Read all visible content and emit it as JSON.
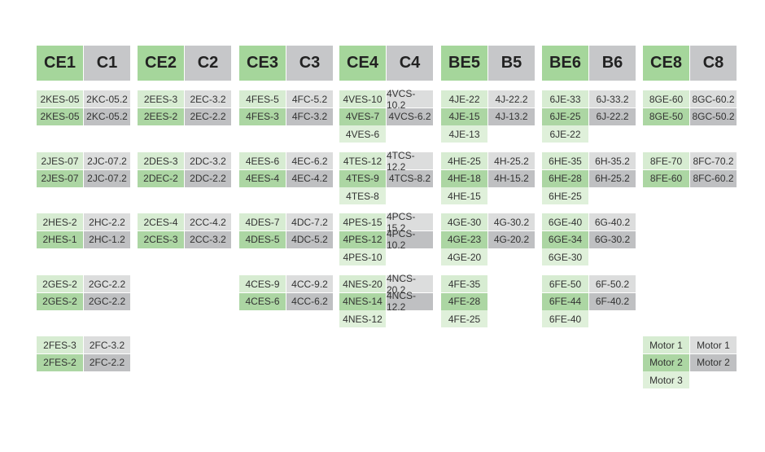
{
  "groups": [
    {
      "header": [
        "CE1",
        "C1"
      ],
      "bands": [
        [
          [
            "2KES-05",
            "2KC-05.2"
          ],
          [
            "2KES-05",
            "2KC-05.2"
          ]
        ],
        [
          [
            "2JES-07",
            "2JC-07.2"
          ],
          [
            "2JES-07",
            "2JC-07.2"
          ]
        ],
        [
          [
            "2HES-2",
            "2HC-2.2"
          ],
          [
            "2HES-1",
            "2HC-1.2"
          ]
        ],
        [
          [
            "2GES-2",
            "2GC-2.2"
          ],
          [
            "2GES-2",
            "2GC-2.2"
          ]
        ],
        [
          [
            "2FES-3",
            "2FC-3.2"
          ],
          [
            "2FES-2",
            "2FC-2.2"
          ]
        ]
      ]
    },
    {
      "header": [
        "CE2",
        "C2"
      ],
      "bands": [
        [
          [
            "2EES-3",
            "2EC-3.2"
          ],
          [
            "2EES-2",
            "2EC-2.2"
          ]
        ],
        [
          [
            "2DES-3",
            "2DC-3.2"
          ],
          [
            "2DEC-2",
            "2DC-2.2"
          ]
        ],
        [
          [
            "2CES-4",
            "2CC-4.2"
          ],
          [
            "2CES-3",
            "2CC-3.2"
          ]
        ],
        null,
        null
      ]
    },
    {
      "header": [
        "CE3",
        "C3"
      ],
      "bands": [
        [
          [
            "4FES-5",
            "4FC-5.2"
          ],
          [
            "4FES-3",
            "4FC-3.2"
          ]
        ],
        [
          [
            "4EES-6",
            "4EC-6.2"
          ],
          [
            "4EES-4",
            "4EC-4.2"
          ]
        ],
        [
          [
            "4DES-7",
            "4DC-7.2"
          ],
          [
            "4DES-5",
            "4DC-5.2"
          ]
        ],
        [
          [
            "4CES-9",
            "4CC-9.2"
          ],
          [
            "4CES-6",
            "4CC-6.2"
          ]
        ],
        null
      ]
    },
    {
      "header": [
        "CE4",
        "C4"
      ],
      "bands": [
        [
          [
            "4VES-10",
            "4VCS-10.2"
          ],
          [
            "4VES-7",
            "4VCS-6.2"
          ],
          [
            "4VES-6"
          ]
        ],
        [
          [
            "4TES-12",
            "4TCS-12.2"
          ],
          [
            "4TES-9",
            "4TCS-8.2"
          ],
          [
            "4TES-8"
          ]
        ],
        [
          [
            "4PES-15",
            "4PCS-15.2"
          ],
          [
            "4PES-12",
            "4PCS-10.2"
          ],
          [
            "4PES-10"
          ]
        ],
        [
          [
            "4NES-20",
            "4NCS-20.2"
          ],
          [
            "4NES-14",
            "4NCS-12.2"
          ],
          [
            "4NES-12"
          ]
        ],
        null
      ]
    },
    {
      "header": [
        "BE5",
        "B5"
      ],
      "bands": [
        [
          [
            "4JE-22",
            "4J-22.2"
          ],
          [
            "4JE-15",
            "4J-13.2"
          ],
          [
            "4JE-13"
          ]
        ],
        [
          [
            "4HE-25",
            "4H-25.2"
          ],
          [
            "4HE-18",
            "4H-15.2"
          ],
          [
            "4HE-15"
          ]
        ],
        [
          [
            "4GE-30",
            "4G-30.2"
          ],
          [
            "4GE-23",
            "4G-20.2"
          ],
          [
            "4GE-20"
          ]
        ],
        [
          [
            "4FE-35"
          ],
          [
            "4FE-28"
          ],
          [
            "4FE-25"
          ]
        ],
        null
      ]
    },
    {
      "header": [
        "BE6",
        "B6"
      ],
      "bands": [
        [
          [
            "6JE-33",
            "6J-33.2"
          ],
          [
            "6JE-25",
            "6J-22.2"
          ],
          [
            "6JE-22"
          ]
        ],
        [
          [
            "6HE-35",
            "6H-35.2"
          ],
          [
            "6HE-28",
            "6H-25.2"
          ],
          [
            "6HE-25"
          ]
        ],
        [
          [
            "6GE-40",
            "6G-40.2"
          ],
          [
            "6GE-34",
            "6G-30.2"
          ],
          [
            "6GE-30"
          ]
        ],
        [
          [
            "6FE-50",
            "6F-50.2"
          ],
          [
            "6FE-44",
            "6F-40.2"
          ],
          [
            "6FE-40"
          ]
        ],
        null
      ]
    },
    {
      "header": [
        "CE8",
        "C8"
      ],
      "bands": [
        [
          [
            "8GE-60",
            "8GC-60.2"
          ],
          [
            "8GE-50",
            "8GC-50.2"
          ]
        ],
        [
          [
            "8FE-70",
            "8FC-70.2"
          ],
          [
            "8FE-60",
            "8FC-60.2"
          ]
        ],
        null,
        null,
        [
          [
            "Motor 1",
            "Motor 1"
          ],
          [
            "Motor 2",
            "Motor 2"
          ],
          [
            "Motor 3"
          ]
        ]
      ]
    }
  ]
}
